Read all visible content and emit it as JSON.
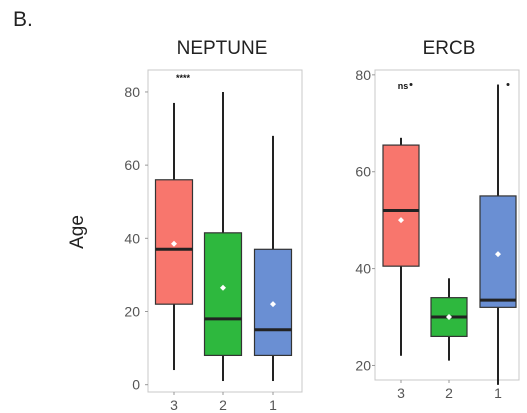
{
  "panel_label": "B.",
  "colors": {
    "3": "#f8766d",
    "2": "#2eb83e",
    "1": "#6a8fd3"
  },
  "chart_data": [
    {
      "type": "box",
      "title": "NEPTUNE",
      "ylabel": "Age",
      "xlabel": "",
      "categories": [
        "3",
        "2",
        "1"
      ],
      "ylim": [
        -2,
        86
      ],
      "yticks": [
        0,
        20,
        40,
        60,
        80
      ],
      "boxes": [
        {
          "group": "3",
          "whisker_low": 4,
          "q1": 22,
          "median": 37,
          "q3": 56,
          "whisker_high": 77,
          "mean": 38.5,
          "outliers": []
        },
        {
          "group": "2",
          "whisker_low": 1,
          "q1": 8,
          "median": 18,
          "q3": 41.5,
          "whisker_high": 80,
          "mean": 26.5,
          "outliers": []
        },
        {
          "group": "1",
          "whisker_low": 1,
          "q1": 8,
          "median": 15,
          "q3": 37,
          "whisker_high": 68,
          "mean": 22,
          "outliers": []
        }
      ],
      "annotation": "****"
    },
    {
      "type": "box",
      "title": "ERCB",
      "ylabel": "",
      "xlabel": "",
      "categories": [
        "3",
        "2",
        "1"
      ],
      "ylim": [
        17,
        81
      ],
      "yticks": [
        20,
        40,
        60,
        80
      ],
      "boxes": [
        {
          "group": "3",
          "whisker_low": 22,
          "q1": 40.5,
          "median": 52,
          "q3": 65.5,
          "whisker_high": 67,
          "mean": 50,
          "outliers": [
            78
          ]
        },
        {
          "group": "2",
          "whisker_low": 21,
          "q1": 26,
          "median": 30,
          "q3": 34,
          "whisker_high": 38,
          "mean": 30,
          "outliers": []
        },
        {
          "group": "1",
          "whisker_low": 16,
          "q1": 32,
          "median": 33.5,
          "q3": 55,
          "whisker_high": 78,
          "mean": 43,
          "outliers": [
            78
          ]
        }
      ],
      "annotation": "ns"
    }
  ]
}
